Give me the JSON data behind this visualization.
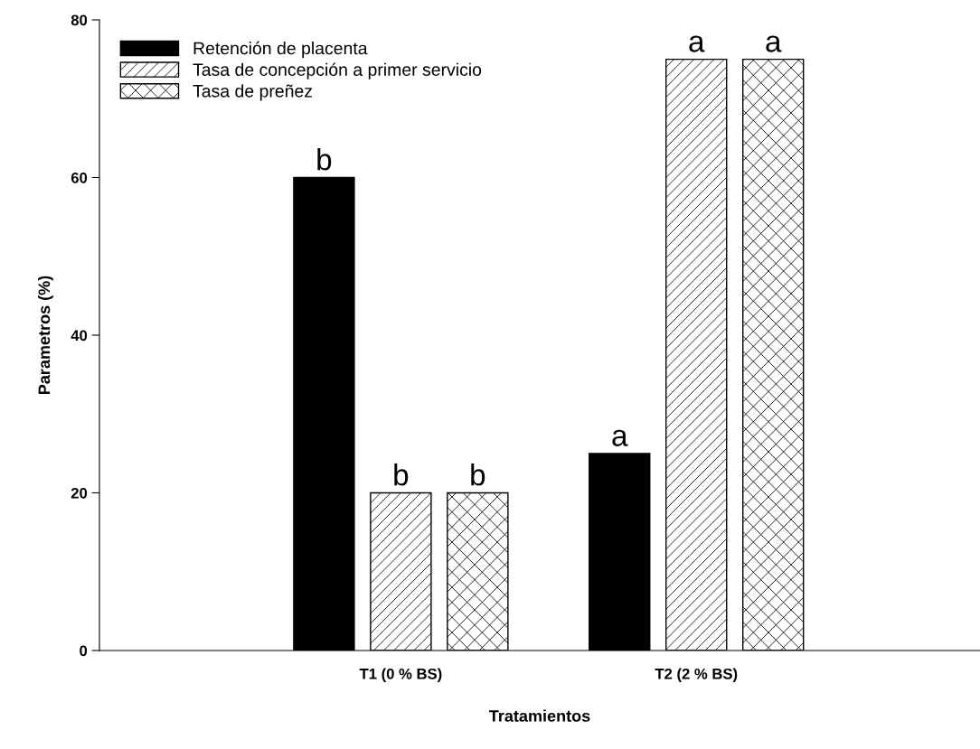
{
  "chart_data": {
    "type": "bar",
    "xlabel": "Tratamientos",
    "ylabel": "Parametros (%)",
    "categories": [
      "T1 (0 % BS)",
      "T2 (2 % BS)"
    ],
    "series": [
      {
        "name": "Retención de placenta",
        "color": "#000000",
        "values": [
          60,
          25
        ],
        "value_labels": [
          "b",
          "a"
        ]
      },
      {
        "name": "Tasa de concepción a primer servicio",
        "color": "#000000",
        "values": [
          20,
          75
        ],
        "value_labels": [
          "b",
          "a"
        ]
      },
      {
        "name": "Tasa de preñez",
        "color": "#000000",
        "values": [
          20,
          75
        ],
        "value_labels": [
          "b",
          "a"
        ]
      }
    ],
    "ylim": [
      0,
      80
    ],
    "yticks": [
      0,
      20,
      40,
      60,
      80
    ],
    "grid": false,
    "legend": "top left"
  }
}
